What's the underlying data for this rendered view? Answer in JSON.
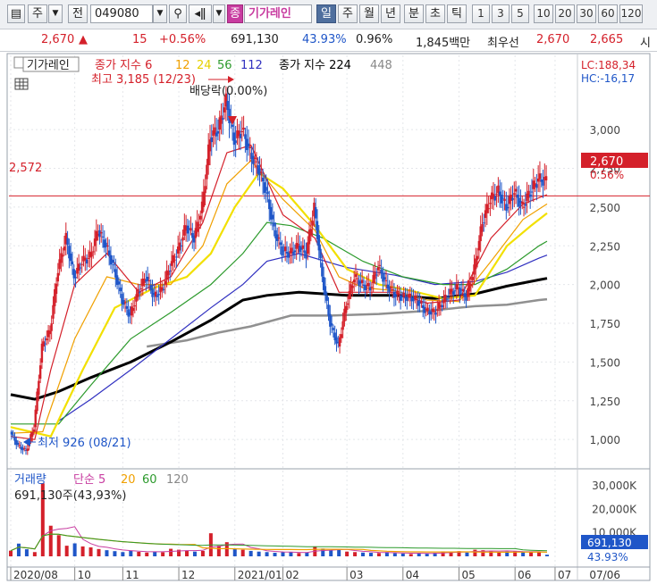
{
  "toolbar": {
    "type_selector": "주",
    "prev_label": "전",
    "code": "049080",
    "stock_badge": "종",
    "stock_name": "기가레인",
    "period_tabs": [
      "일",
      "주",
      "월",
      "년",
      "분",
      "초",
      "틱"
    ],
    "numbers": [
      "1",
      "3",
      "5",
      "10",
      "20",
      "30",
      "60",
      "120"
    ]
  },
  "quote": {
    "price": "2,670",
    "change": "15",
    "change_pct": "+0.56%",
    "volume": "691,130",
    "turnover_rate": "43.93%",
    "ratio": "0.96%",
    "trade_value": "1,845백만",
    "best_label": "최우선",
    "best_ask": "2,670",
    "best_bid": "2,665",
    "extra": "시"
  },
  "price_panel": {
    "title": "기가레인",
    "ma_label": "종가 지수 6",
    "ma_periods": [
      "12",
      "24",
      "56",
      "112"
    ],
    "ma_long_label": "종가 지수 224",
    "ma_long2": "448",
    "high_label": "최고 3,185 (12/23)",
    "low_label": "최저 926 (08/21)",
    "dividend_label": "배당락(0.00%)",
    "lc": "LC:188,34",
    "hc": "HC:-16,17",
    "ref_line_label": "2,572",
    "current_price_box": "2,670",
    "current_pct": "0.56%"
  },
  "volume_panel": {
    "title": "거래량",
    "ma_label": "단순 5",
    "ma_periods": [
      "20",
      "60",
      "120"
    ],
    "info": "691,130주(43,93%)",
    "current_volume_box": "691,130",
    "current_pct": "43.93%"
  },
  "colors": {
    "up": "#d4202a",
    "down": "#1f56c8",
    "ma6": "#d4202a",
    "ma12": "#f0a000",
    "ma24": "#f2e000",
    "ma56": "#2c9a2c",
    "ma112": "#3030c0",
    "ma224": "#000000",
    "ma448": "#909090",
    "reference": "#d4202a"
  },
  "chart_data": {
    "type": "candlestick",
    "y_ticks": [
      1000,
      1250,
      1500,
      1750,
      2000,
      2250,
      2500,
      2750,
      3000
    ],
    "y_range": [
      880,
      3260
    ],
    "volume_ticks": [
      "30,000K",
      "20,000K",
      "10,000K"
    ],
    "volume_range_k": [
      0,
      33000
    ],
    "x_tick_labels": [
      "2020/08",
      "10",
      "11",
      "12",
      "2021/01",
      "02",
      "03",
      "04",
      "05",
      "06",
      "07"
    ],
    "x_right_label": "07/06",
    "reference_price": 2572,
    "last_price": 2670,
    "price_high": 3185,
    "price_low": 926,
    "price_points": [
      [
        0,
        1050
      ],
      [
        1,
        960
      ],
      [
        2,
        926
      ],
      [
        3,
        1080
      ],
      [
        4,
        1600
      ],
      [
        5,
        1700
      ],
      [
        6,
        2100
      ],
      [
        7,
        2300
      ],
      [
        8,
        2050
      ],
      [
        9,
        2150
      ],
      [
        10,
        2180
      ],
      [
        11,
        2350
      ],
      [
        12,
        2250
      ],
      [
        13,
        2100
      ],
      [
        14,
        1900
      ],
      [
        15,
        1800
      ],
      [
        16,
        1950
      ],
      [
        17,
        2050
      ],
      [
        18,
        1920
      ],
      [
        19,
        1970
      ],
      [
        20,
        2120
      ],
      [
        21,
        2220
      ],
      [
        22,
        2380
      ],
      [
        23,
        2300
      ],
      [
        24,
        2500
      ],
      [
        25,
        2950
      ],
      [
        26,
        3000
      ],
      [
        27,
        3185
      ],
      [
        28,
        2930
      ],
      [
        29,
        3000
      ],
      [
        30,
        2850
      ],
      [
        31,
        2750
      ],
      [
        32,
        2600
      ],
      [
        33,
        2350
      ],
      [
        34,
        2220
      ],
      [
        35,
        2200
      ],
      [
        36,
        2250
      ],
      [
        37,
        2200
      ],
      [
        38,
        2500
      ],
      [
        39,
        2050
      ],
      [
        40,
        1750
      ],
      [
        41,
        1600
      ],
      [
        42,
        1870
      ],
      [
        43,
        2050
      ],
      [
        44,
        2000
      ],
      [
        45,
        1980
      ],
      [
        46,
        2120
      ],
      [
        47,
        2000
      ],
      [
        48,
        1940
      ],
      [
        49,
        1920
      ],
      [
        50,
        1920
      ],
      [
        51,
        1890
      ],
      [
        52,
        1830
      ],
      [
        53,
        1820
      ],
      [
        54,
        1880
      ],
      [
        55,
        1950
      ],
      [
        56,
        1980
      ],
      [
        57,
        1920
      ],
      [
        58,
        2100
      ],
      [
        59,
        2400
      ],
      [
        60,
        2550
      ],
      [
        61,
        2600
      ],
      [
        62,
        2500
      ],
      [
        63,
        2600
      ],
      [
        64,
        2500
      ],
      [
        65,
        2600
      ],
      [
        66,
        2680
      ],
      [
        67,
        2670
      ]
    ],
    "ma_lines": {
      "ma6": [
        [
          0,
          1020
        ],
        [
          3,
          1000
        ],
        [
          5,
          1450
        ],
        [
          8,
          2000
        ],
        [
          12,
          2200
        ],
        [
          16,
          1950
        ],
        [
          20,
          2050
        ],
        [
          24,
          2400
        ],
        [
          27,
          2850
        ],
        [
          30,
          2900
        ],
        [
          34,
          2450
        ],
        [
          38,
          2300
        ],
        [
          41,
          1950
        ],
        [
          44,
          1950
        ],
        [
          48,
          1950
        ],
        [
          52,
          1880
        ],
        [
          56,
          1900
        ],
        [
          60,
          2300
        ],
        [
          64,
          2520
        ],
        [
          67,
          2580
        ]
      ],
      "ma12": [
        [
          0,
          1040
        ],
        [
          4,
          1050
        ],
        [
          8,
          1650
        ],
        [
          12,
          2050
        ],
        [
          16,
          2000
        ],
        [
          20,
          2000
        ],
        [
          24,
          2250
        ],
        [
          27,
          2650
        ],
        [
          30,
          2800
        ],
        [
          34,
          2550
        ],
        [
          38,
          2350
        ],
        [
          41,
          2050
        ],
        [
          44,
          1980
        ],
        [
          48,
          1960
        ],
        [
          52,
          1900
        ],
        [
          56,
          1890
        ],
        [
          60,
          2150
        ],
        [
          64,
          2420
        ],
        [
          67,
          2520
        ]
      ],
      "ma24": [
        [
          0,
          1080
        ],
        [
          5,
          1020
        ],
        [
          9,
          1450
        ],
        [
          13,
          1850
        ],
        [
          18,
          1980
        ],
        [
          22,
          2050
        ],
        [
          25,
          2200
        ],
        [
          28,
          2500
        ],
        [
          31,
          2720
        ],
        [
          34,
          2620
        ],
        [
          38,
          2380
        ],
        [
          42,
          2100
        ],
        [
          46,
          2000
        ],
        [
          50,
          1960
        ],
        [
          54,
          1910
        ],
        [
          58,
          1930
        ],
        [
          62,
          2250
        ],
        [
          65,
          2380
        ],
        [
          67,
          2460
        ]
      ],
      "ma56": [
        [
          0,
          1100
        ],
        [
          6,
          1100
        ],
        [
          10,
          1350
        ],
        [
          15,
          1650
        ],
        [
          20,
          1820
        ],
        [
          25,
          2000
        ],
        [
          29,
          2200
        ],
        [
          32,
          2400
        ],
        [
          35,
          2380
        ],
        [
          39,
          2300
        ],
        [
          44,
          2150
        ],
        [
          49,
          2050
        ],
        [
          54,
          2000
        ],
        [
          58,
          2000
        ],
        [
          62,
          2100
        ],
        [
          66,
          2250
        ],
        [
          67,
          2280
        ]
      ],
      "ma112": [
        [
          6,
          1120
        ],
        [
          10,
          1260
        ],
        [
          15,
          1450
        ],
        [
          20,
          1650
        ],
        [
          25,
          1850
        ],
        [
          29,
          2000
        ],
        [
          32,
          2150
        ],
        [
          36,
          2200
        ],
        [
          42,
          2110
        ],
        [
          48,
          2060
        ],
        [
          53,
          2000
        ],
        [
          58,
          2020
        ],
        [
          62,
          2080
        ],
        [
          66,
          2170
        ],
        [
          67,
          2190
        ]
      ],
      "ma224": [
        [
          0,
          1290
        ],
        [
          3,
          1260
        ],
        [
          6,
          1310
        ],
        [
          10,
          1400
        ],
        [
          15,
          1500
        ],
        [
          20,
          1630
        ],
        [
          25,
          1770
        ],
        [
          29,
          1900
        ],
        [
          32,
          1930
        ],
        [
          36,
          1950
        ],
        [
          42,
          1930
        ],
        [
          48,
          1930
        ],
        [
          53,
          1910
        ],
        [
          58,
          1940
        ],
        [
          62,
          1990
        ],
        [
          66,
          2030
        ],
        [
          67,
          2040
        ]
      ],
      "ma448": [
        [
          17,
          1600
        ],
        [
          22,
          1640
        ],
        [
          26,
          1690
        ],
        [
          30,
          1730
        ],
        [
          35,
          1800
        ],
        [
          40,
          1800
        ],
        [
          46,
          1810
        ],
        [
          52,
          1830
        ],
        [
          58,
          1860
        ],
        [
          62,
          1870
        ],
        [
          66,
          1900
        ],
        [
          67,
          1905
        ]
      ]
    },
    "volume_k": [
      2400,
      5400,
      3000,
      1800,
      31000,
      13000,
      9000,
      4500,
      5500,
      4200,
      3800,
      3100,
      2600,
      2200,
      1800,
      2400,
      1900,
      1600,
      2000,
      1700,
      3200,
      2800,
      2400,
      2000,
      2300,
      9800,
      4500,
      6000,
      3100,
      2800,
      2300,
      2000,
      1800,
      1500,
      1700,
      1900,
      1400,
      1600,
      4200,
      3300,
      2500,
      2700,
      2000,
      1800,
      1600,
      1500,
      1400,
      1800,
      1300,
      1200,
      1000,
      1400,
      1100,
      1500,
      2100,
      1800,
      2200,
      1600,
      2800,
      2600,
      2200,
      1900,
      2000,
      2300,
      1700,
      1800,
      2000,
      691
    ]
  }
}
